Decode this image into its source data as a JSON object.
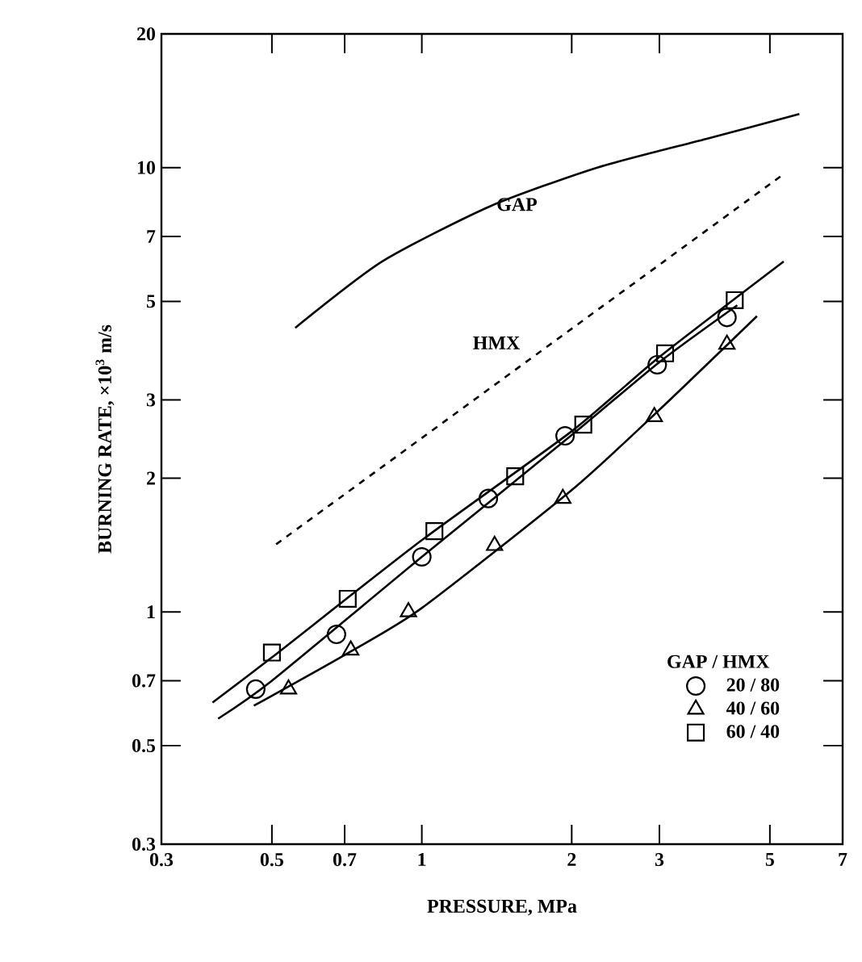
{
  "chart_data": {
    "type": "scatter",
    "xlabel": "PRESSURE, MPa",
    "ylabel": "BURNING RATE, ×10$^{3}$ m/s",
    "legend_title": "GAP / HMX",
    "legend": "bottom right",
    "log": "xy",
    "grid": false,
    "xlim": [
      0.3,
      7
    ],
    "xticks": [
      0.3,
      0.5,
      0.7,
      1,
      2,
      3,
      5,
      7
    ],
    "ylim": [
      0.3,
      20
    ],
    "yticks": [
      0.3,
      0.5,
      0.7,
      1,
      2,
      3,
      5,
      7,
      10,
      20
    ],
    "series": [
      {
        "type": "line",
        "name": "GAP",
        "color": "#000000",
        "marker": "none",
        "line_style": "solid",
        "x": [
          0.557,
          0.833,
          1.37,
          2.25,
          3.72,
          5.73
        ],
        "values": [
          4.36,
          6.15,
          8.18,
          10.0,
          11.6,
          13.2
        ]
      },
      {
        "type": "line",
        "name": "HMX",
        "color": "#000000",
        "marker": "none",
        "line_style": "dashed",
        "x": [
          0.51,
          5.33
        ],
        "values": [
          1.42,
          9.67
        ]
      },
      {
        "type": "line",
        "color": "#000000",
        "marker": "none",
        "line_style": "solid",
        "x": [
          0.38,
          0.5,
          1.0,
          2.0,
          3.0,
          5.33
        ],
        "values": [
          0.625,
          0.79,
          1.45,
          2.55,
          3.75,
          6.15
        ]
      },
      {
        "type": "line",
        "color": "#000000",
        "marker": "none",
        "line_style": "solid",
        "x": [
          0.39,
          0.5,
          1.0,
          2.0,
          3.0,
          4.3
        ],
        "values": [
          0.575,
          0.7,
          1.33,
          2.5,
          3.65,
          4.9
        ]
      },
      {
        "type": "line",
        "color": "#000000",
        "marker": "none",
        "line_style": "solid",
        "x": [
          0.46,
          0.7,
          1.0,
          2.0,
          3.0,
          4.71
        ],
        "values": [
          0.615,
          0.8,
          1.02,
          1.88,
          2.85,
          4.63
        ]
      },
      {
        "name": "20 / 80",
        "color": "#000000",
        "marker": "circle",
        "x": [
          0.464,
          0.674,
          1.0,
          1.36,
          1.94,
          2.97,
          4.1
        ],
        "values": [
          0.67,
          0.89,
          1.33,
          1.8,
          2.49,
          3.6,
          4.6
        ]
      },
      {
        "name": "40 / 60",
        "color": "#000000",
        "marker": "triangle",
        "x": [
          0.54,
          0.72,
          0.94,
          1.4,
          1.92,
          2.93,
          4.1
        ],
        "values": [
          0.67,
          0.82,
          1.0,
          1.41,
          1.8,
          2.75,
          4.0
        ]
      },
      {
        "name": "60 / 40",
        "color": "#000000",
        "marker": "square",
        "x": [
          0.5,
          0.71,
          1.06,
          1.54,
          2.11,
          3.08,
          4.25
        ],
        "values": [
          0.81,
          1.07,
          1.52,
          2.02,
          2.64,
          3.82,
          5.03
        ]
      }
    ]
  }
}
